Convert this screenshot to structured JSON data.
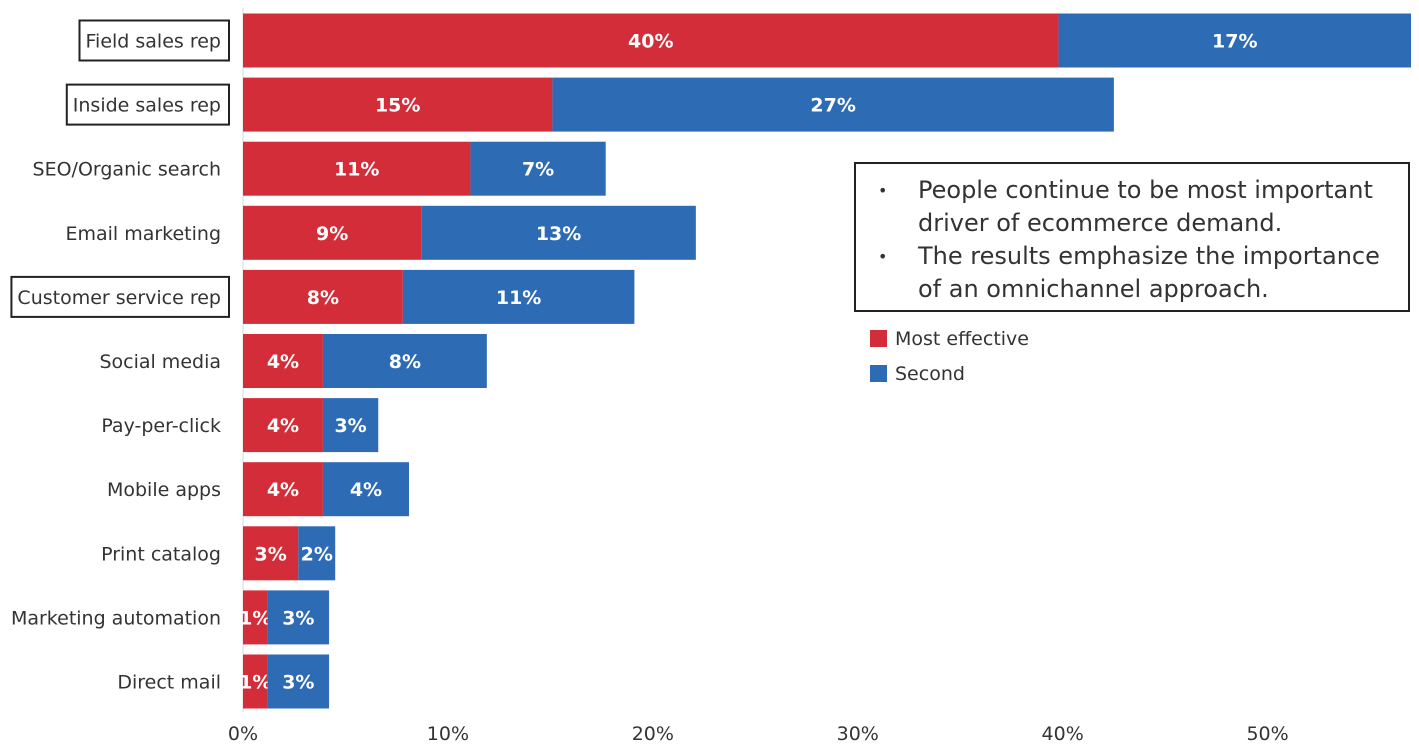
{
  "chart_data": {
    "type": "bar",
    "orientation": "horizontal",
    "stacked": true,
    "categories": [
      "Field sales rep",
      "Inside sales rep",
      "SEO/Organic search",
      "Email marketing",
      "Customer service rep",
      "Social media",
      "Pay-per-click",
      "Mobile apps",
      "Print catalog",
      "Marketing automation",
      "Direct mail"
    ],
    "boxed_categories": [
      "Field sales rep",
      "Inside sales rep",
      "Customer service rep"
    ],
    "series": [
      {
        "name": "Most effective",
        "color": "#d42d3a",
        "values": [
          39.8,
          15.1,
          11.1,
          8.7,
          7.8,
          3.9,
          3.9,
          3.9,
          2.7,
          1.2,
          1.2
        ],
        "labels": [
          "40%",
          "15%",
          "11%",
          "9%",
          "8%",
          "4%",
          "4%",
          "4%",
          "3%",
          "1%",
          "1%"
        ]
      },
      {
        "name": "Second",
        "color": "#2e6bb5",
        "values": [
          17.2,
          27.4,
          6.6,
          13.4,
          11.3,
          8.0,
          2.7,
          4.2,
          1.8,
          3.0,
          3.0
        ],
        "labels": [
          "17%",
          "27%",
          "7%",
          "13%",
          "11%",
          "8%",
          "3%",
          "4%",
          "2%",
          "3%",
          "3%"
        ]
      }
    ],
    "xlim": [
      0,
      57
    ],
    "xticks": [
      0,
      10,
      20,
      30,
      40,
      50
    ],
    "xtick_labels": [
      "0%",
      "10%",
      "20%",
      "30%",
      "40%",
      "50%"
    ],
    "title": "",
    "xlabel": "",
    "ylabel": "",
    "grid": false,
    "legend": {
      "position": "right",
      "entries": [
        "Most effective",
        "Second"
      ]
    }
  },
  "note": {
    "bullets": [
      "People continue to be most important driver of ecommerce demand.",
      "The results emphasize the importance of an omnichannel approach."
    ]
  }
}
